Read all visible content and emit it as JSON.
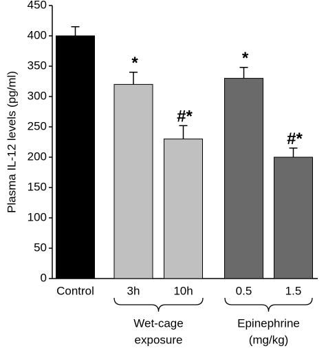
{
  "chart_data": {
    "type": "bar",
    "y_label": "Plasma IL-12 levels (pg/ml)",
    "categories": [
      "Control",
      "3h",
      "10h",
      "0.5",
      "1.5"
    ],
    "values": [
      400,
      320,
      230,
      330,
      200
    ],
    "errors": [
      15,
      20,
      22,
      18,
      15
    ],
    "annotations": [
      null,
      "*",
      "#*",
      "*",
      "#*"
    ],
    "colors": [
      "#000000",
      "#c0c0c0",
      "#c0c0c0",
      "#6a6a6a",
      "#6a6a6a"
    ],
    "groups": [
      {
        "lines": [
          "Wet-cage",
          "exposure"
        ]
      },
      {
        "lines": [
          "Epinephrine",
          "(mg/kg)"
        ]
      }
    ],
    "ylim": [
      0,
      450
    ],
    "yticks": [
      0,
      50,
      100,
      150,
      200,
      250,
      300,
      350,
      400,
      450
    ]
  }
}
